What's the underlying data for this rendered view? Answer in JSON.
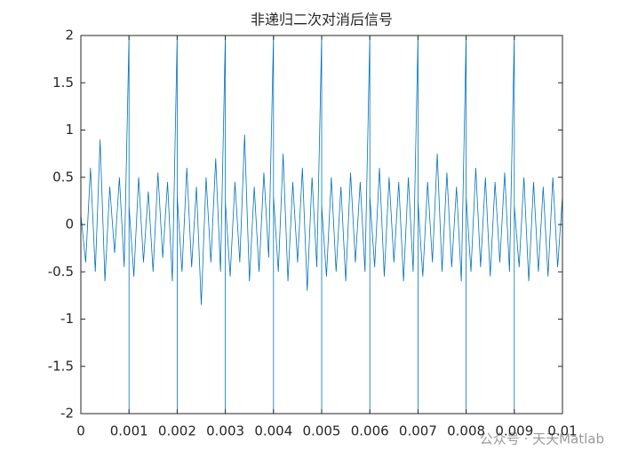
{
  "chart_data": {
    "type": "line",
    "title": "非递归二次对消后信号",
    "x": [
      0,
      0,
      0.0001,
      0.0002,
      0.0003,
      0.0004,
      0.0005,
      0.0006,
      0.0007,
      0.0008,
      0.0009,
      0.001,
      0.001,
      0.001,
      0.0011,
      0.0012,
      0.0013,
      0.0014,
      0.0015,
      0.0016,
      0.0017,
      0.0018,
      0.0019,
      0.002,
      0.002,
      0.002,
      0.0021,
      0.0022,
      0.0023,
      0.0024,
      0.0025,
      0.0026,
      0.0027,
      0.0028,
      0.0029,
      0.003,
      0.003,
      0.003,
      0.0031,
      0.0032,
      0.0033,
      0.0034,
      0.0035,
      0.0036,
      0.0037,
      0.0038,
      0.0039,
      0.004,
      0.004,
      0.004,
      0.0041,
      0.0042,
      0.0043,
      0.0044,
      0.0045,
      0.0046,
      0.0047,
      0.0048,
      0.0049,
      0.005,
      0.005,
      0.005,
      0.0051,
      0.0052,
      0.0053,
      0.0054,
      0.0055,
      0.0056,
      0.0057,
      0.0058,
      0.0059,
      0.006,
      0.006,
      0.006,
      0.0061,
      0.0062,
      0.0063,
      0.0064,
      0.0065,
      0.0066,
      0.0067,
      0.0068,
      0.0069,
      0.007,
      0.007,
      0.007,
      0.0071,
      0.0072,
      0.0073,
      0.0074,
      0.0075,
      0.0076,
      0.0077,
      0.0078,
      0.0079,
      0.008,
      0.008,
      0.008,
      0.0081,
      0.0082,
      0.0083,
      0.0084,
      0.0085,
      0.0086,
      0.0087,
      0.0088,
      0.0089,
      0.009,
      0.009,
      0.009,
      0.0091,
      0.0092,
      0.0093,
      0.0094,
      0.0095,
      0.0096,
      0.0097,
      0.0098,
      0.0099,
      0.01
    ],
    "series": [
      {
        "color": "#0072bd",
        "values": [
          -2,
          0.1,
          -0.4,
          0.6,
          -0.5,
          0.9,
          -0.6,
          0.4,
          -0.3,
          0.5,
          -0.45,
          2,
          -2,
          0.2,
          -0.55,
          0.5,
          -0.4,
          0.35,
          -0.5,
          0.55,
          -0.35,
          0.45,
          -0.6,
          2,
          -2,
          0.3,
          -0.5,
          0.6,
          -0.45,
          0.4,
          -0.85,
          0.5,
          -0.4,
          0.7,
          -0.5,
          2,
          -2,
          0.25,
          -0.55,
          0.45,
          -0.4,
          0.95,
          -0.6,
          0.4,
          -0.5,
          0.55,
          -0.35,
          2,
          -2,
          0.3,
          -0.5,
          0.75,
          -0.6,
          0.45,
          -0.4,
          0.6,
          -0.7,
          0.5,
          -0.45,
          2,
          -2,
          0.2,
          -0.55,
          0.5,
          -0.5,
          0.4,
          -0.6,
          0.55,
          -0.4,
          0.45,
          -0.5,
          2,
          -2,
          0.3,
          -0.45,
          0.6,
          -0.55,
          0.5,
          -0.4,
          0.45,
          -0.6,
          0.5,
          -0.5,
          2,
          -2,
          0.25,
          -0.55,
          0.45,
          -0.4,
          0.75,
          -0.5,
          0.55,
          -0.45,
          0.4,
          -0.6,
          2,
          -2,
          0.3,
          -0.5,
          0.6,
          -0.45,
          0.5,
          -0.55,
          0.45,
          -0.4,
          0.55,
          -0.5,
          2,
          -2,
          0.2,
          -0.45,
          0.5,
          -0.6,
          0.45,
          -0.5,
          0.4,
          -0.55,
          0.5,
          -0.45,
          0.3
        ]
      }
    ],
    "xlim": [
      0,
      0.01
    ],
    "xticks": [
      0,
      0.001,
      0.002,
      0.003,
      0.004,
      0.005,
      0.006,
      0.007,
      0.008,
      0.009,
      0.01
    ],
    "ylim": [
      -2,
      2
    ],
    "yticks": [
      -2,
      -1.5,
      -1,
      -0.5,
      0,
      0.5,
      1,
      1.5,
      2
    ],
    "watermark": "公众号 · 天天Matlab"
  }
}
